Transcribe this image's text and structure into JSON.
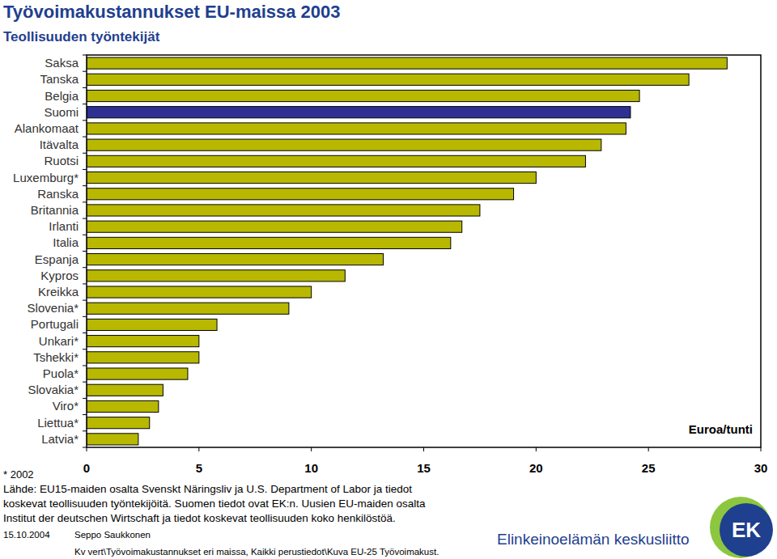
{
  "chart_data": {
    "type": "bar",
    "orientation": "horizontal",
    "title": "Työvoimakustannukset EU-maissa 2003",
    "subtitle": "Teollisuuden työntekijät",
    "x_label": "Euroa/tunti",
    "categories": [
      "Saksa",
      "Tanska",
      "Belgia",
      "Suomi",
      "Alankomaat",
      "Itävalta",
      "Ruotsi",
      "Luxemburg*",
      "Ranska",
      "Britannia",
      "Irlanti",
      "Italia",
      "Espanja",
      "Kypros",
      "Kreikka",
      "Slovenia*",
      "Portugali",
      "Unkari*",
      "Tshekki*",
      "Puola*",
      "Slovakia*",
      "Viro*",
      "Liettua*",
      "Latvia*"
    ],
    "values": [
      28.5,
      26.8,
      24.6,
      24.2,
      24.0,
      22.9,
      22.2,
      20.0,
      19.0,
      17.5,
      16.7,
      16.2,
      13.2,
      11.5,
      10.0,
      9.0,
      5.8,
      5.0,
      5.0,
      4.5,
      3.4,
      3.2,
      2.8,
      2.3
    ],
    "colors": [
      "#b8b800",
      "#b8b800",
      "#b8b800",
      "#2e3192",
      "#b8b800",
      "#b8b800",
      "#b8b800",
      "#b8b800",
      "#b8b800",
      "#b8b800",
      "#b8b800",
      "#b8b800",
      "#b8b800",
      "#b8b800",
      "#b8b800",
      "#b8b800",
      "#b8b800",
      "#b8b800",
      "#b8b800",
      "#b8b800",
      "#b8b800",
      "#b8b800",
      "#b8b800",
      "#b8b800"
    ],
    "xlim": [
      0,
      30
    ],
    "xticks": [
      0,
      5,
      10,
      15,
      20,
      25,
      30
    ],
    "grid": false,
    "footnote": "* 2002",
    "source": [
      "Lähde: EU15-maiden osalta Svenskt Näringsliv ja U.S. Department of Labor ja tiedot",
      "koskevat teollisuuden työntekijöitä. Suomen tiedot ovat EK:n. Uusien EU-maiden osalta",
      "Institut der deutschen Wirtschaft ja tiedot koskevat teollisuuden koko henkilöstöä."
    ],
    "date": "15.10.2004",
    "author": "Seppo Saukkonen",
    "file_path": "Kv vert\\Työvoimakustannukset eri maissa, Kaikki perustiedot\\Kuva EU-25 Työvoimakust.",
    "organization": "Elinkeinoelämän keskusliitto",
    "logo": "EK"
  }
}
